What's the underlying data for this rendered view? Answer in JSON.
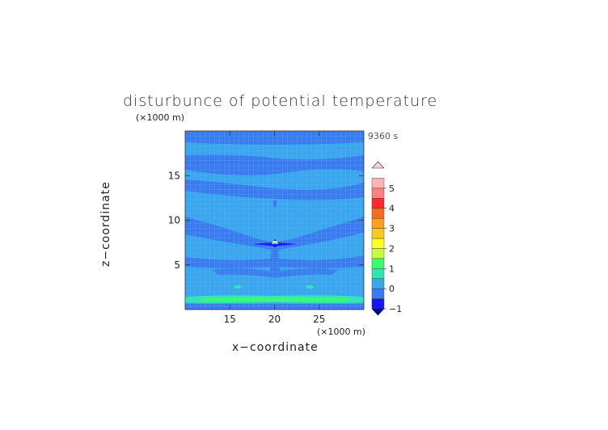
{
  "chart_data": {
    "type": "heatmap",
    "title": "disturbunce of potential temperature",
    "time_label": "9360 s",
    "xlabel": "x−coordinate",
    "ylabel": "z−coordinate",
    "x_unit": "(×1000 m)",
    "y_unit": "(×1000 m)",
    "xlim": [
      10,
      30
    ],
    "ylim": [
      0,
      20
    ],
    "x_ticks": [
      15,
      20,
      25
    ],
    "y_ticks": [
      5,
      10,
      15
    ],
    "x_tick_labels": [
      "15",
      "20",
      "25"
    ],
    "y_tick_labels": [
      "5",
      "10",
      "15"
    ],
    "colorbar": {
      "levels": [
        -1,
        -0.5,
        0,
        0.5,
        1,
        1.5,
        2,
        2.5,
        3,
        3.5,
        4,
        4.5,
        5
      ],
      "tick_labels": [
        "−1",
        "0",
        "1",
        "2",
        "3",
        "4",
        "5"
      ],
      "colors": [
        "#1414ff",
        "#3a7cf0",
        "#3aa6ee",
        "#2ee8b0",
        "#39ff6a",
        "#c8ff3a",
        "#ffff22",
        "#ffc81e",
        "#ffa01e",
        "#ff6a1e",
        "#ff2828",
        "#ff8080",
        "#ffb4b4"
      ],
      "under_color": "#0000a0",
      "over_color": "#ffd0d0"
    }
  },
  "background_color": "#3aa6ee"
}
